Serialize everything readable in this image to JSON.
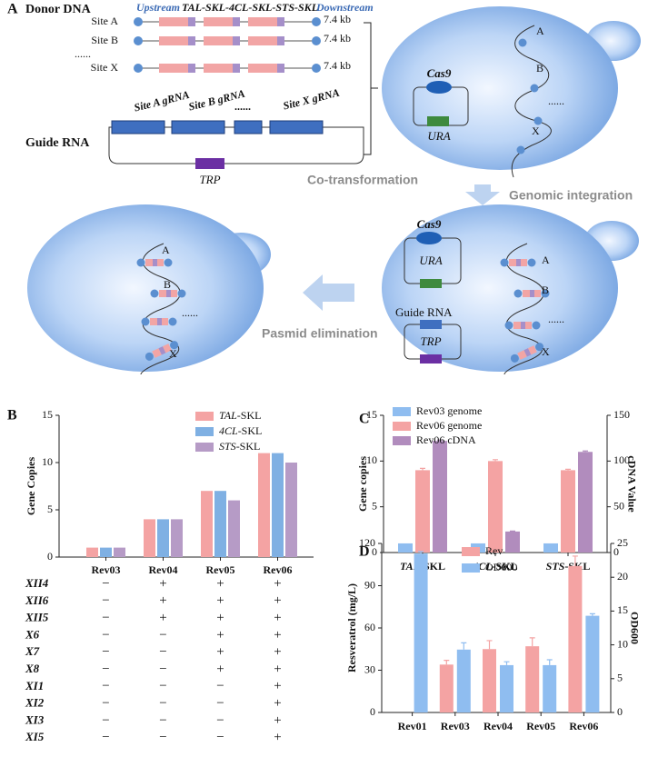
{
  "panel_a": {
    "label": "A",
    "donor_dna": {
      "title": "Donor DNA",
      "upstream": "Upstream",
      "cassette": "TAL-SKL-4CL-SKL-STS-SKL",
      "downstream": "Downstream",
      "sites": [
        {
          "name": "Site A",
          "size": "7.4 kb"
        },
        {
          "name": "Site B",
          "size": "7.4 kb"
        },
        {
          "name": "Site X",
          "size": "7.4 kb"
        }
      ],
      "ellipsis": "......"
    },
    "guide_rna": {
      "title": "Guide RNA",
      "grnas": [
        "Site A gRNA",
        "Site B gRNA",
        "......",
        "Site X gRNA"
      ],
      "marker": "TRP"
    },
    "cell_1": {
      "cas9": "Cas9",
      "marker": "URA",
      "sites": [
        "A",
        "B",
        "......",
        "X"
      ]
    },
    "steps": [
      "Co-transformation",
      "Genomic integration",
      "Pasmid elimination"
    ],
    "cell_2": {
      "cas9": "Cas9",
      "marker": "URA",
      "guide_rna": "Guide RNA",
      "guide_marker": "TRP",
      "sites": [
        "A",
        "B",
        "......",
        "X"
      ]
    },
    "cell_3": {
      "sites": [
        "A",
        "B",
        "......",
        "X"
      ]
    }
  },
  "chart_data": [
    {
      "type": "bar",
      "panel": "B",
      "ylabel": "Gene Copies",
      "categories": [
        "Rev03",
        "Rev04",
        "Rev05",
        "Rev06"
      ],
      "series": [
        {
          "name": "TAL-SKL",
          "color": "#f4a3a3",
          "values": [
            1,
            4,
            7,
            11
          ]
        },
        {
          "name": "4CL-SKL",
          "color": "#7fb0e3",
          "values": [
            1,
            4,
            7,
            11
          ]
        },
        {
          "name": "STS-SKL",
          "color": "#b69bc6",
          "values": [
            1,
            4,
            6,
            10
          ]
        }
      ],
      "ylim": [
        0,
        15
      ],
      "yticks": [
        0,
        5,
        10,
        15
      ]
    },
    {
      "type": "bar",
      "panel": "C",
      "ylabel": "Gene copies",
      "y2label": "cDNA Value",
      "categories": [
        "TAL-SKL",
        "4CL-SKL",
        "STS-SKL"
      ],
      "series": [
        {
          "name": "Rev03 genome",
          "color": "#8fbdf0",
          "values": [
            1,
            1,
            1
          ]
        },
        {
          "name": "Rev06 genome",
          "color": "#f4a3a3",
          "values": [
            9,
            10,
            9
          ],
          "errors": [
            0.2,
            0.15,
            0.1
          ]
        },
        {
          "name": "Rev06 cDNA",
          "color": "#b18cbd",
          "values": [
            122,
            23,
            110
          ],
          "errors": [
            1,
            0.5,
            1
          ],
          "axis": "y2"
        }
      ],
      "ylim": [
        0,
        15
      ],
      "yticks": [
        0,
        5,
        10,
        15
      ],
      "y2lim": [
        0,
        150
      ],
      "y2ticks": [
        0,
        50,
        100,
        150
      ]
    },
    {
      "type": "bar",
      "panel": "D",
      "ylabel": "Resveratrol (mg/L)",
      "y2label": "OD600",
      "categories": [
        "Rev01",
        "Rev03",
        "Rev04",
        "Rev05",
        "Rev06"
      ],
      "series": [
        {
          "name": "Rev",
          "color": "#f4a3a3",
          "values": [
            null,
            34,
            45,
            47,
            104
          ],
          "errors": [
            null,
            3,
            6,
            6,
            7
          ]
        },
        {
          "name": "OD600",
          "color": "#8fbdf0",
          "values": [
            23.5,
            9.3,
            7,
            7,
            14.3
          ],
          "errors": [
            0.3,
            1,
            0.5,
            0.8,
            0.3
          ],
          "axis": "y2"
        }
      ],
      "ylim": [
        0,
        120
      ],
      "yticks": [
        0,
        30,
        60,
        90,
        120
      ],
      "y2lim": [
        0,
        25
      ],
      "y2ticks": [
        0,
        5,
        10,
        15,
        20,
        25
      ]
    }
  ],
  "panel_b_table": {
    "rows": [
      {
        "label": "XII4",
        "marks": [
          "−",
          "+",
          "+",
          "+"
        ]
      },
      {
        "label": "XII6",
        "marks": [
          "−",
          "+",
          "+",
          "+"
        ]
      },
      {
        "label": "XII5",
        "marks": [
          "−",
          "+",
          "+",
          "+"
        ]
      },
      {
        "label": "X6",
        "marks": [
          "−",
          "−",
          "+",
          "+"
        ]
      },
      {
        "label": "X7",
        "marks": [
          "−",
          "−",
          "+",
          "+"
        ]
      },
      {
        "label": "X8",
        "marks": [
          "−",
          "−",
          "+",
          "+"
        ]
      },
      {
        "label": "XI1",
        "marks": [
          "−",
          "−",
          "−",
          "+"
        ]
      },
      {
        "label": "XI2",
        "marks": [
          "−",
          "−",
          "−",
          "+"
        ]
      },
      {
        "label": "XI3",
        "marks": [
          "−",
          "−",
          "−",
          "+"
        ]
      },
      {
        "label": "XI5",
        "marks": [
          "−",
          "−",
          "−",
          "+"
        ]
      }
    ]
  }
}
